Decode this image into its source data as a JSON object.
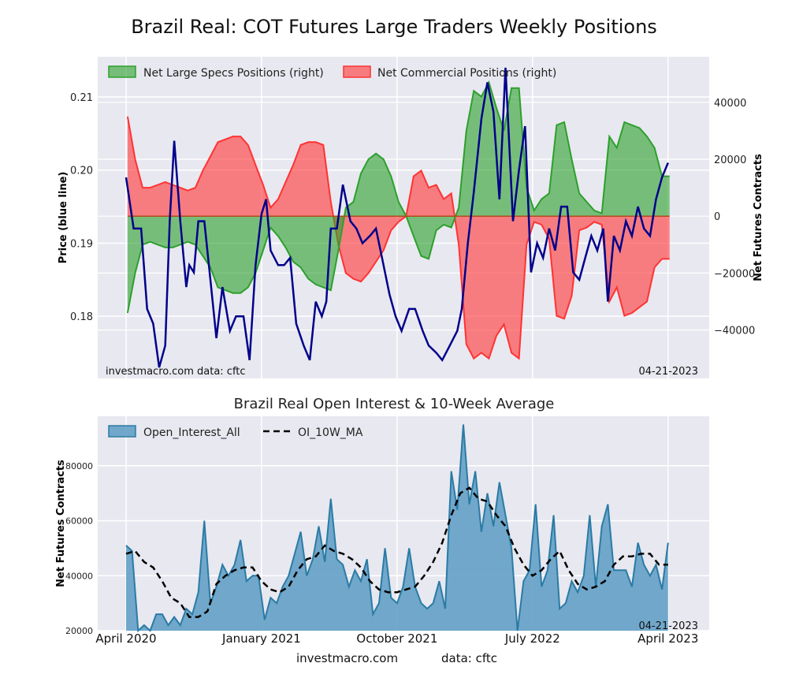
{
  "title": "Brazil Real: COT Futures Large Traders Weekly Positions",
  "subtitle": "Brazil Real Open Interest & 10-Week Average",
  "footer": {
    "site": "investmacro.com",
    "source": "data: cftc"
  },
  "chart_data": [
    {
      "type": "line",
      "title": "Brazil Real: COT Futures Large Traders Weekly Positions",
      "ylabel": "Price (blue line)",
      "y2label": "Net Futures Contracts",
      "ylim": [
        0.1715,
        0.2155
      ],
      "y2lim": [
        -57000,
        56000
      ],
      "yticks": [
        0.18,
        0.19,
        0.2,
        0.21
      ],
      "y2ticks": [
        -40000,
        -20000,
        0,
        20000,
        40000
      ],
      "x_dates_months_since_apr2020": true,
      "xlim": [
        0,
        38
      ],
      "legend_location": "top-left",
      "watermark_left": "investmacro.com    data: cftc",
      "watermark_right": "04-21-2023",
      "colors": {
        "price": "#00008b",
        "specs": "#2ca02c",
        "commercial": "#ff3333",
        "grid": "#ffffff",
        "plot_bg": "#e8e8f0"
      },
      "series": [
        {
          "name": "Net Large Specs Positions (right)",
          "axis": "right",
          "x": [
            0.1,
            0.6,
            1.1,
            1.6,
            2.1,
            2.6,
            3.1,
            3.6,
            4.1,
            4.6,
            5.1,
            5.6,
            6.1,
            6.6,
            7.1,
            7.6,
            8.1,
            8.6,
            9.1,
            9.6,
            10.1,
            10.6,
            11.1,
            11.6,
            12.1,
            12.6,
            13.1,
            13.6,
            14.1,
            14.6,
            15.1,
            15.6,
            16.1,
            16.6,
            17.1,
            17.6,
            18.1,
            18.6,
            19.1,
            19.6,
            20.1,
            20.6,
            21.1,
            21.6,
            22.1,
            22.6,
            23.1,
            23.6,
            24.1,
            24.6,
            25.1,
            25.6,
            26.1,
            26.6,
            27.1,
            27.6,
            28.1,
            28.6,
            29.1,
            29.6,
            30.1,
            30.6,
            31.1,
            31.6,
            32.1,
            32.6,
            33.1,
            33.6,
            34.1,
            34.6,
            35.1,
            35.6,
            36.1
          ],
          "values": [
            -34000,
            -20000,
            -10000,
            -9000,
            -10000,
            -11000,
            -11000,
            -10000,
            -9000,
            -10000,
            -14000,
            -18000,
            -25000,
            -26000,
            -27000,
            -27000,
            -25000,
            -20000,
            -12000,
            -4000,
            -7000,
            -11000,
            -16000,
            -18000,
            -22000,
            -24000,
            -25000,
            -26000,
            -12000,
            3000,
            5000,
            15000,
            20000,
            22000,
            20000,
            14000,
            5000,
            0,
            -7000,
            -14000,
            -15000,
            -5000,
            -3000,
            -4000,
            3000,
            30000,
            44000,
            42000,
            47000,
            38000,
            30000,
            45000,
            45000,
            10000,
            2000,
            6000,
            8000,
            32000,
            33000,
            20000,
            8000,
            5000,
            2000,
            1000,
            28000,
            24000,
            33000,
            32000,
            31000,
            28000,
            24000,
            14000,
            14000
          ]
        },
        {
          "name": "Net Commercial Positions (right)",
          "axis": "right",
          "x": [
            0.1,
            0.6,
            1.1,
            1.6,
            2.1,
            2.6,
            3.1,
            3.6,
            4.1,
            4.6,
            5.1,
            5.6,
            6.1,
            6.6,
            7.1,
            7.6,
            8.1,
            8.6,
            9.1,
            9.6,
            10.1,
            10.6,
            11.1,
            11.6,
            12.1,
            12.6,
            13.1,
            13.6,
            14.1,
            14.6,
            15.1,
            15.6,
            16.1,
            16.6,
            17.1,
            17.6,
            18.1,
            18.6,
            19.1,
            19.6,
            20.1,
            20.6,
            21.1,
            21.6,
            22.1,
            22.6,
            23.1,
            23.6,
            24.1,
            24.6,
            25.1,
            25.6,
            26.1,
            26.6,
            27.1,
            27.6,
            28.1,
            28.6,
            29.1,
            29.6,
            30.1,
            30.6,
            31.1,
            31.6,
            32.1,
            32.6,
            33.1,
            33.6,
            34.1,
            34.6,
            35.1,
            35.6,
            36.1
          ],
          "values": [
            35000,
            20000,
            10000,
            10000,
            11000,
            12000,
            11000,
            10000,
            9000,
            10000,
            16000,
            21000,
            26000,
            27000,
            28000,
            28000,
            25000,
            18000,
            11000,
            3000,
            6000,
            12000,
            18000,
            25000,
            26000,
            26000,
            25000,
            5000,
            -10000,
            -20000,
            -22000,
            -23000,
            -20000,
            -16000,
            -12000,
            -5000,
            -2000,
            0,
            14000,
            16000,
            10000,
            11000,
            6000,
            8000,
            -10000,
            -45000,
            -50000,
            -48000,
            -50000,
            -42000,
            -38000,
            -48000,
            -50000,
            -10000,
            -2000,
            -3000,
            -8000,
            -35000,
            -36000,
            -28000,
            -5000,
            -4000,
            -2000,
            -3000,
            -30000,
            -25000,
            -35000,
            -34000,
            -32000,
            -30000,
            -18000,
            -15000,
            -15000
          ]
        },
        {
          "name": "Price",
          "axis": "left",
          "x": [
            0.0,
            0.5,
            1.0,
            1.4,
            1.8,
            2.2,
            2.6,
            2.9,
            3.2,
            3.6,
            4.0,
            4.2,
            4.5,
            4.8,
            5.2,
            5.6,
            6.0,
            6.4,
            6.9,
            7.3,
            7.8,
            8.2,
            8.6,
            9.0,
            9.3,
            9.6,
            10.1,
            10.5,
            10.9,
            11.3,
            11.8,
            12.2,
            12.6,
            13.0,
            13.3,
            13.6,
            14.0,
            14.4,
            14.9,
            15.3,
            15.7,
            16.2,
            16.6,
            17.0,
            17.5,
            17.9,
            18.3,
            18.8,
            19.2,
            19.7,
            20.1,
            20.6,
            21.0,
            21.5,
            22.0,
            22.3,
            22.7,
            23.1,
            23.6,
            24.0,
            24.4,
            24.8,
            25.2,
            25.7,
            26.1,
            26.5,
            26.9,
            27.3,
            27.7,
            28.1,
            28.5,
            28.9,
            29.3,
            29.7,
            30.1,
            30.5,
            30.9,
            31.3,
            31.7,
            32.0,
            32.4,
            32.8,
            33.2,
            33.6,
            34.0,
            34.4,
            34.8,
            35.2,
            35.6,
            36.0
          ],
          "values": [
            0.199,
            0.192,
            0.192,
            0.181,
            0.179,
            0.173,
            0.176,
            0.193,
            0.204,
            0.193,
            0.184,
            0.187,
            0.186,
            0.193,
            0.193,
            0.185,
            0.177,
            0.184,
            0.178,
            0.18,
            0.18,
            0.174,
            0.187,
            0.194,
            0.196,
            0.189,
            0.187,
            0.187,
            0.188,
            0.179,
            0.176,
            0.174,
            0.182,
            0.18,
            0.182,
            0.192,
            0.192,
            0.198,
            0.193,
            0.192,
            0.19,
            0.191,
            0.192,
            0.188,
            0.183,
            0.18,
            0.178,
            0.181,
            0.181,
            0.178,
            0.176,
            0.175,
            0.174,
            0.176,
            0.178,
            0.181,
            0.19,
            0.197,
            0.207,
            0.212,
            0.208,
            0.196,
            0.214,
            0.193,
            0.2,
            0.206,
            0.186,
            0.19,
            0.188,
            0.192,
            0.189,
            0.195,
            0.195,
            0.186,
            0.185,
            0.188,
            0.191,
            0.189,
            0.192,
            0.182,
            0.191,
            0.189,
            0.193,
            0.191,
            0.195,
            0.192,
            0.191,
            0.196,
            0.199,
            0.201
          ]
        }
      ]
    },
    {
      "type": "area",
      "title": "Brazil Real Open Interest & 10-Week Average",
      "ylabel": "Net Futures Contracts",
      "ylim": [
        20000,
        98000
      ],
      "yticks": [
        20000,
        40000,
        60000,
        80000
      ],
      "xlim": [
        0,
        38
      ],
      "x_tick_labels": [
        "April 2020",
        "January 2021",
        "October 2021",
        "July 2022",
        "April 2023"
      ],
      "x_tick_positions_months": [
        0,
        9,
        18,
        27,
        36
      ],
      "legend_location": "top-left",
      "watermark_right": "04-21-2023",
      "colors": {
        "area_fill": "#5b9bc3",
        "area_line": "#2a7ba5",
        "ma_line": "#000000"
      },
      "series": [
        {
          "name": "Open_Interest_All",
          "x": [
            0.0,
            0.4,
            0.8,
            1.2,
            1.6,
            2.0,
            2.4,
            2.8,
            3.2,
            3.6,
            4.0,
            4.4,
            4.8,
            5.2,
            5.6,
            6.0,
            6.4,
            6.8,
            7.2,
            7.6,
            8.0,
            8.4,
            8.8,
            9.2,
            9.6,
            10.0,
            10.4,
            10.8,
            11.2,
            11.6,
            12.0,
            12.4,
            12.8,
            13.2,
            13.6,
            14.0,
            14.4,
            14.8,
            15.2,
            15.6,
            16.0,
            16.4,
            16.8,
            17.2,
            17.6,
            18.0,
            18.4,
            18.8,
            19.2,
            19.6,
            20.0,
            20.4,
            20.8,
            21.2,
            21.6,
            22.0,
            22.4,
            22.8,
            23.2,
            23.6,
            24.0,
            24.4,
            24.8,
            25.2,
            25.6,
            26.0,
            26.4,
            26.8,
            27.2,
            27.6,
            28.0,
            28.4,
            28.8,
            29.2,
            29.6,
            30.0,
            30.4,
            30.8,
            31.2,
            31.6,
            32.0,
            32.4,
            32.8,
            33.2,
            33.6,
            34.0,
            34.4,
            34.8,
            35.2,
            35.6,
            36.0
          ],
          "values": [
            51000,
            49000,
            20000,
            22000,
            20000,
            26000,
            26000,
            22000,
            25000,
            22000,
            28000,
            26000,
            34000,
            60000,
            30000,
            36000,
            44000,
            40000,
            44000,
            53000,
            38000,
            40000,
            40000,
            24000,
            32000,
            30000,
            36000,
            40000,
            48000,
            56000,
            40000,
            46000,
            58000,
            45000,
            68000,
            46000,
            44000,
            36000,
            42000,
            38000,
            46000,
            26000,
            30000,
            50000,
            32000,
            30000,
            36000,
            50000,
            36000,
            30000,
            28000,
            30000,
            38000,
            28000,
            78000,
            64000,
            95000,
            66000,
            78000,
            56000,
            70000,
            58000,
            74000,
            62000,
            50000,
            20000,
            38000,
            42000,
            66000,
            36000,
            42000,
            62000,
            28000,
            30000,
            38000,
            34000,
            40000,
            62000,
            36000,
            58000,
            66000,
            42000,
            42000,
            42000,
            36000,
            52000,
            44000,
            40000,
            44000,
            35000,
            52000
          ]
        },
        {
          "name": "OI_10W_MA",
          "x": [
            0.0,
            0.6,
            1.2,
            1.8,
            2.4,
            3.0,
            3.6,
            4.2,
            4.8,
            5.4,
            6.0,
            6.6,
            7.2,
            7.8,
            8.4,
            9.0,
            9.6,
            10.2,
            10.8,
            11.4,
            12.0,
            12.6,
            13.2,
            13.8,
            14.4,
            15.0,
            15.6,
            16.2,
            16.8,
            17.4,
            18.0,
            18.6,
            19.2,
            19.8,
            20.4,
            21.0,
            21.6,
            22.2,
            22.8,
            23.4,
            24.0,
            24.6,
            25.2,
            25.8,
            26.4,
            27.0,
            27.6,
            28.2,
            28.8,
            29.4,
            30.0,
            30.6,
            31.2,
            31.8,
            32.4,
            33.0,
            33.6,
            34.2,
            34.8,
            35.4,
            36.0
          ],
          "values": [
            48000,
            49000,
            45000,
            43000,
            38000,
            32000,
            30000,
            25000,
            25000,
            27000,
            37000,
            40000,
            42000,
            43000,
            43000,
            38000,
            35000,
            34000,
            36000,
            42000,
            46000,
            47000,
            51000,
            49000,
            48000,
            46000,
            43000,
            38000,
            35000,
            34000,
            34000,
            35000,
            36000,
            40000,
            45000,
            52000,
            62000,
            70000,
            72000,
            68000,
            67000,
            62000,
            58000,
            50000,
            44000,
            40000,
            42000,
            46000,
            49000,
            42000,
            37000,
            35000,
            36000,
            38000,
            44000,
            47000,
            47000,
            48000,
            48000,
            44000,
            44000
          ]
        }
      ]
    }
  ]
}
